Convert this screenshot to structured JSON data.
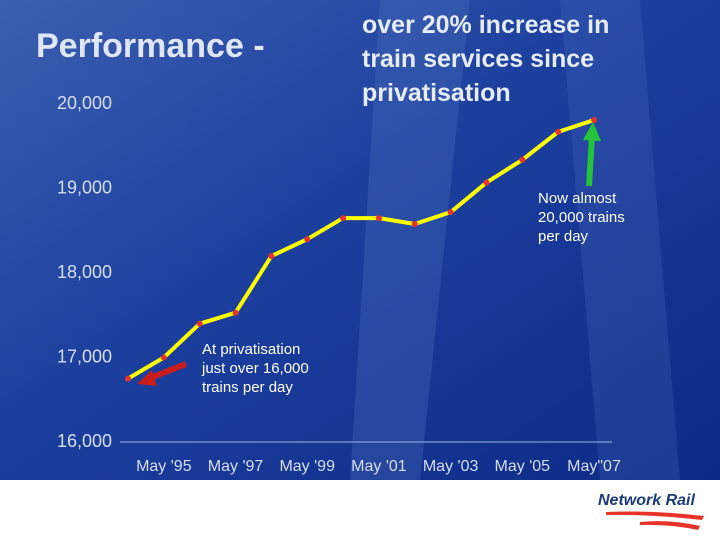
{
  "chart_data": {
    "type": "line",
    "title": "Performance -",
    "subtitle": "over 20% increase in train services since privatisation",
    "categories": [
      null,
      "May '95",
      null,
      "May '97",
      null,
      "May '99",
      null,
      "May '01",
      null,
      "May '03",
      null,
      "May '05",
      null,
      "May\"07"
    ],
    "values": [
      16750,
      17000,
      17400,
      17530,
      18200,
      18400,
      18650,
      18650,
      18580,
      18720,
      19070,
      19340,
      19670,
      19810
    ],
    "color": "#ffff00",
    "marker_color": "#e8332a",
    "ylim": [
      16000,
      20000
    ],
    "yticks": [
      {
        "value": 16000,
        "label": "16,000"
      },
      {
        "value": 17000,
        "label": "17,000"
      },
      {
        "value": 18000,
        "label": "18,000"
      },
      {
        "value": 19000,
        "label": "19,000"
      },
      {
        "value": 20000,
        "label": "20,000"
      }
    ],
    "annotations": [
      {
        "lines": [
          "Now almost",
          "20,000 trains",
          "per day"
        ]
      },
      {
        "lines": [
          "At privatisation",
          "just over 16,000",
          "trains per day"
        ]
      }
    ]
  },
  "logo": "Network Rail"
}
